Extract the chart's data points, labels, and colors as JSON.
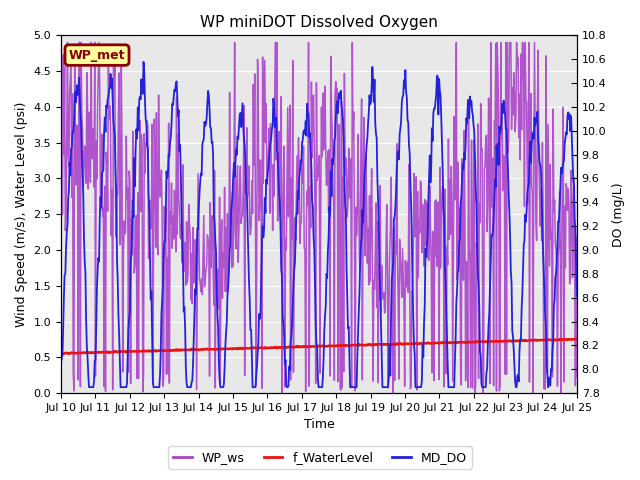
{
  "title": "WP miniDOT Dissolved Oxygen",
  "ylabel_left": "Wind Speed (m/s), Water Level (psi)",
  "ylabel_right": "DO (mg/L)",
  "xlabel": "Time",
  "ylim_left": [
    0.0,
    5.0
  ],
  "ylim_right": [
    7.8,
    10.8
  ],
  "yticks_left": [
    0.0,
    0.5,
    1.0,
    1.5,
    2.0,
    2.5,
    3.0,
    3.5,
    4.0,
    4.5,
    5.0
  ],
  "yticks_right": [
    7.8,
    8.0,
    8.2,
    8.4,
    8.6,
    8.8,
    9.0,
    9.2,
    9.4,
    9.6,
    9.8,
    10.0,
    10.2,
    10.4,
    10.6,
    10.8
  ],
  "xtick_labels": [
    "Jul 10",
    "Jul 11",
    "Jul 12",
    "Jul 13",
    "Jul 14",
    "Jul 15",
    "Jul 16",
    "Jul 17",
    "Jul 18",
    "Jul 19",
    "Jul 20",
    "Jul 21",
    "Jul 22",
    "Jul 23",
    "Jul 24",
    "Jul 25"
  ],
  "color_ws": "#AA44CC",
  "color_wl": "#EE1111",
  "color_do": "#2222DD",
  "bg_color": "#E8E8E8",
  "legend_labels": [
    "WP_ws",
    "f_WaterLevel",
    "MD_DO"
  ],
  "annotation_text": "WP_met",
  "annotation_bg": "#FFFF99",
  "annotation_border": "#880000",
  "n_points": 720
}
